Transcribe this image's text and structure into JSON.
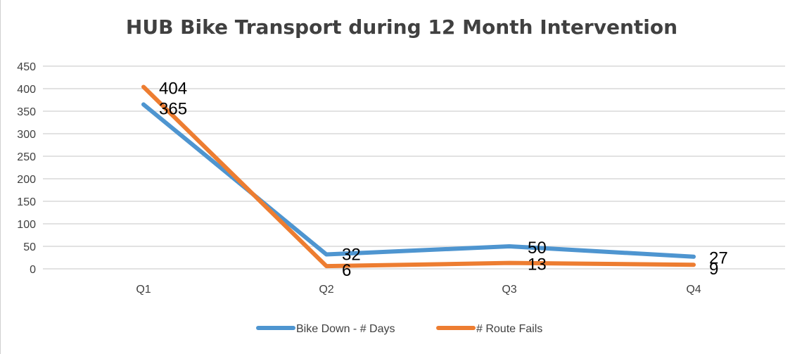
{
  "chart_data": {
    "type": "line",
    "title": "HUB Bike Transport during 12 Month Intervention",
    "categories": [
      "Q1",
      "Q2",
      "Q3",
      "Q4"
    ],
    "series": [
      {
        "name": "Bike Down - # Days",
        "values": [
          365,
          32,
          50,
          27
        ],
        "color": "#4e95d0"
      },
      {
        "name": "# Route Fails",
        "values": [
          404,
          6,
          13,
          9
        ],
        "color": "#ed7d31"
      }
    ],
    "ylim": [
      0,
      450
    ],
    "yticks": [
      0,
      50,
      100,
      150,
      200,
      250,
      300,
      350,
      400,
      450
    ],
    "grid": true,
    "legend_position": "bottom"
  }
}
